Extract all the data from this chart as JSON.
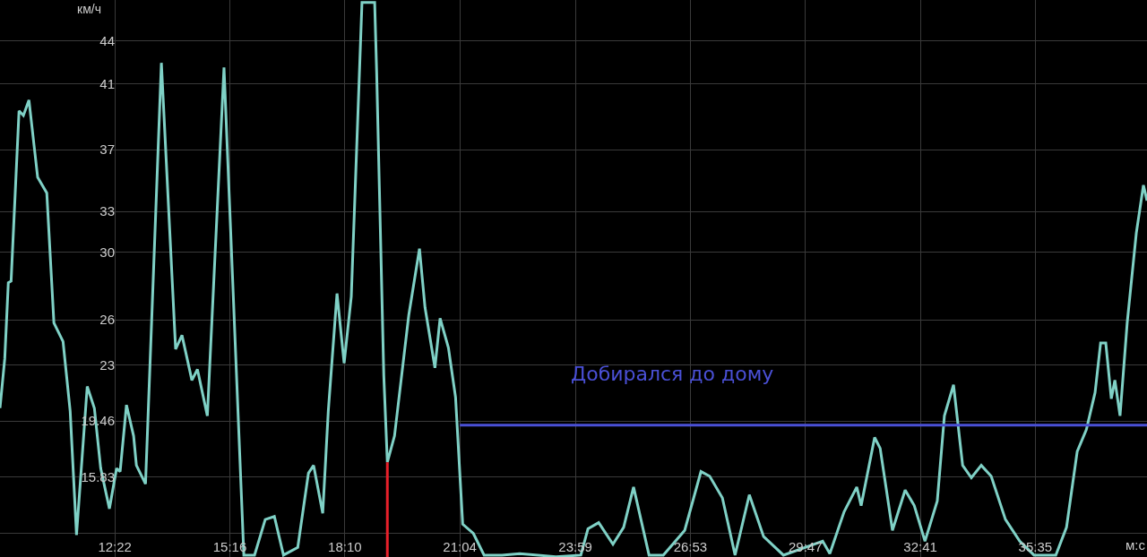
{
  "chart_data": {
    "type": "line",
    "ylabel": "км/ч",
    "xlabel": "м:с",
    "grid": true,
    "xlim": [
      9.47,
      38.4
    ],
    "ylim": [
      10.68,
      46.66
    ],
    "xticks": [
      {
        "value": 12.367,
        "label": "12:22"
      },
      {
        "value": 15.267,
        "label": "15:16"
      },
      {
        "value": 18.167,
        "label": "18:10"
      },
      {
        "value": 21.067,
        "label": "21:04"
      },
      {
        "value": 23.983,
        "label": "23:59"
      },
      {
        "value": 26.883,
        "label": "26:53"
      },
      {
        "value": 29.783,
        "label": "29:47"
      },
      {
        "value": 32.683,
        "label": "32:41"
      },
      {
        "value": 35.583,
        "label": "35:35"
      }
    ],
    "yticks": [
      {
        "value": 12.2,
        "label": null
      },
      15.83,
      19.46,
      {
        "value": 23.09,
        "label": "23"
      },
      26,
      {
        "value": 30.35,
        "label": "30"
      },
      33,
      37,
      {
        "value": 41.24,
        "label": "41"
      },
      44
    ],
    "annotations": [
      "Добирался до дому"
    ],
    "series": [
      {
        "color": "#7fd1c6",
        "x": [
          9.47,
          9.59,
          9.68,
          9.75,
          9.95,
          10.06,
          10.2,
          10.42,
          10.65,
          10.83,
          11.06,
          11.24,
          11.4,
          11.67,
          11.85,
          12.01,
          12.23,
          12.41,
          12.5,
          12.66,
          12.84,
          12.91,
          13.14,
          13.54,
          13.9,
          14.06,
          14.31,
          14.45,
          14.7,
          15.12,
          15.62,
          15.89,
          16.16,
          16.39,
          16.62,
          16.98,
          17.25,
          17.38,
          17.61,
          17.75,
          17.97,
          18.15,
          18.33,
          18.6,
          18.92,
          18.97,
          19.15,
          19.24,
          19.42,
          19.78,
          20.05,
          20.19,
          20.44,
          20.57,
          20.78,
          20.96,
          21.14,
          21.41,
          21.68,
          22.13,
          22.58,
          23.49,
          24.12,
          24.3,
          24.57,
          24.93,
          25.2,
          25.45,
          25.84,
          26.2,
          26.74,
          27.15,
          27.37,
          27.69,
          28.01,
          28.37,
          28.73,
          29.23,
          30.22,
          30.4,
          30.76,
          31.08,
          31.19,
          31.53,
          31.67,
          31.98,
          32.3,
          32.53,
          32.8,
          33.11,
          33.29,
          33.52,
          33.75,
          33.97,
          34.22,
          34.47,
          34.83,
          35.19,
          35.55,
          36.1,
          36.37,
          36.64,
          36.87,
          37.09,
          37.23,
          37.36,
          37.5,
          37.59,
          37.72,
          37.9,
          38.13,
          38.31,
          38.4
        ],
        "values": [
          20.3,
          23.5,
          28.4,
          28.5,
          39.5,
          39.2,
          40.2,
          35.2,
          34.2,
          25.8,
          24.6,
          20.1,
          12.1,
          21.7,
          20.3,
          16.4,
          13.8,
          16.4,
          16.2,
          20.5,
          18.5,
          16.6,
          15.4,
          42.6,
          24.1,
          25.0,
          22.1,
          22.8,
          19.8,
          42.3,
          10.8,
          10.8,
          13.1,
          13.3,
          10.8,
          11.3,
          16.1,
          16.6,
          13.5,
          20.1,
          27.7,
          23.2,
          27.5,
          46.5,
          46.5,
          42.0,
          22.4,
          16.8,
          18.5,
          26.3,
          30.6,
          26.8,
          22.9,
          26.1,
          24.2,
          21.0,
          12.8,
          12.2,
          10.8,
          10.8,
          10.9,
          10.7,
          10.8,
          12.5,
          12.9,
          11.5,
          12.6,
          15.2,
          10.8,
          10.8,
          12.4,
          16.2,
          15.9,
          14.5,
          10.8,
          14.7,
          12.0,
          10.8,
          11.7,
          10.9,
          13.6,
          15.2,
          14.0,
          18.4,
          17.7,
          12.4,
          15.0,
          14.0,
          11.7,
          14.3,
          19.8,
          21.8,
          16.6,
          15.8,
          16.6,
          15.9,
          13.1,
          11.7,
          10.8,
          10.8,
          12.6,
          17.5,
          18.9,
          21.3,
          24.5,
          24.5,
          20.9,
          22.1,
          19.8,
          25.8,
          31.6,
          34.7,
          33.7
        ]
      },
      {
        "color": "#e8202a",
        "x": [
          19.24,
          19.24
        ],
        "values": [
          10.68,
          16.8
        ]
      },
      {
        "color": "#4a50d6",
        "x": [
          21.07,
          38.4
        ],
        "values": [
          19.2,
          19.2
        ]
      }
    ]
  }
}
